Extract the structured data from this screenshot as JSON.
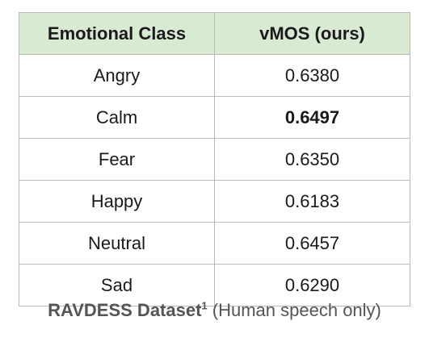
{
  "table": {
    "headers": [
      "Emotional Class",
      "vMOS (ours)"
    ],
    "rows": [
      {
        "emotion": "Angry",
        "vmos": "0.6380",
        "best": false
      },
      {
        "emotion": "Calm",
        "vmos": "0.6497",
        "best": true
      },
      {
        "emotion": "Fear",
        "vmos": "0.6350",
        "best": false
      },
      {
        "emotion": "Happy",
        "vmos": "0.6183",
        "best": false
      },
      {
        "emotion": "Neutral",
        "vmos": "0.6457",
        "best": false
      },
      {
        "emotion": "Sad",
        "vmos": "0.6290",
        "best": false
      }
    ]
  },
  "caption": {
    "dataset": "RAVDESS Dataset",
    "footnote_mark": "1",
    "note": "(Human speech only)"
  },
  "colors": {
    "header_bg": "#d9ead3",
    "border": "#b9b9b9",
    "caption_text": "#555555"
  }
}
